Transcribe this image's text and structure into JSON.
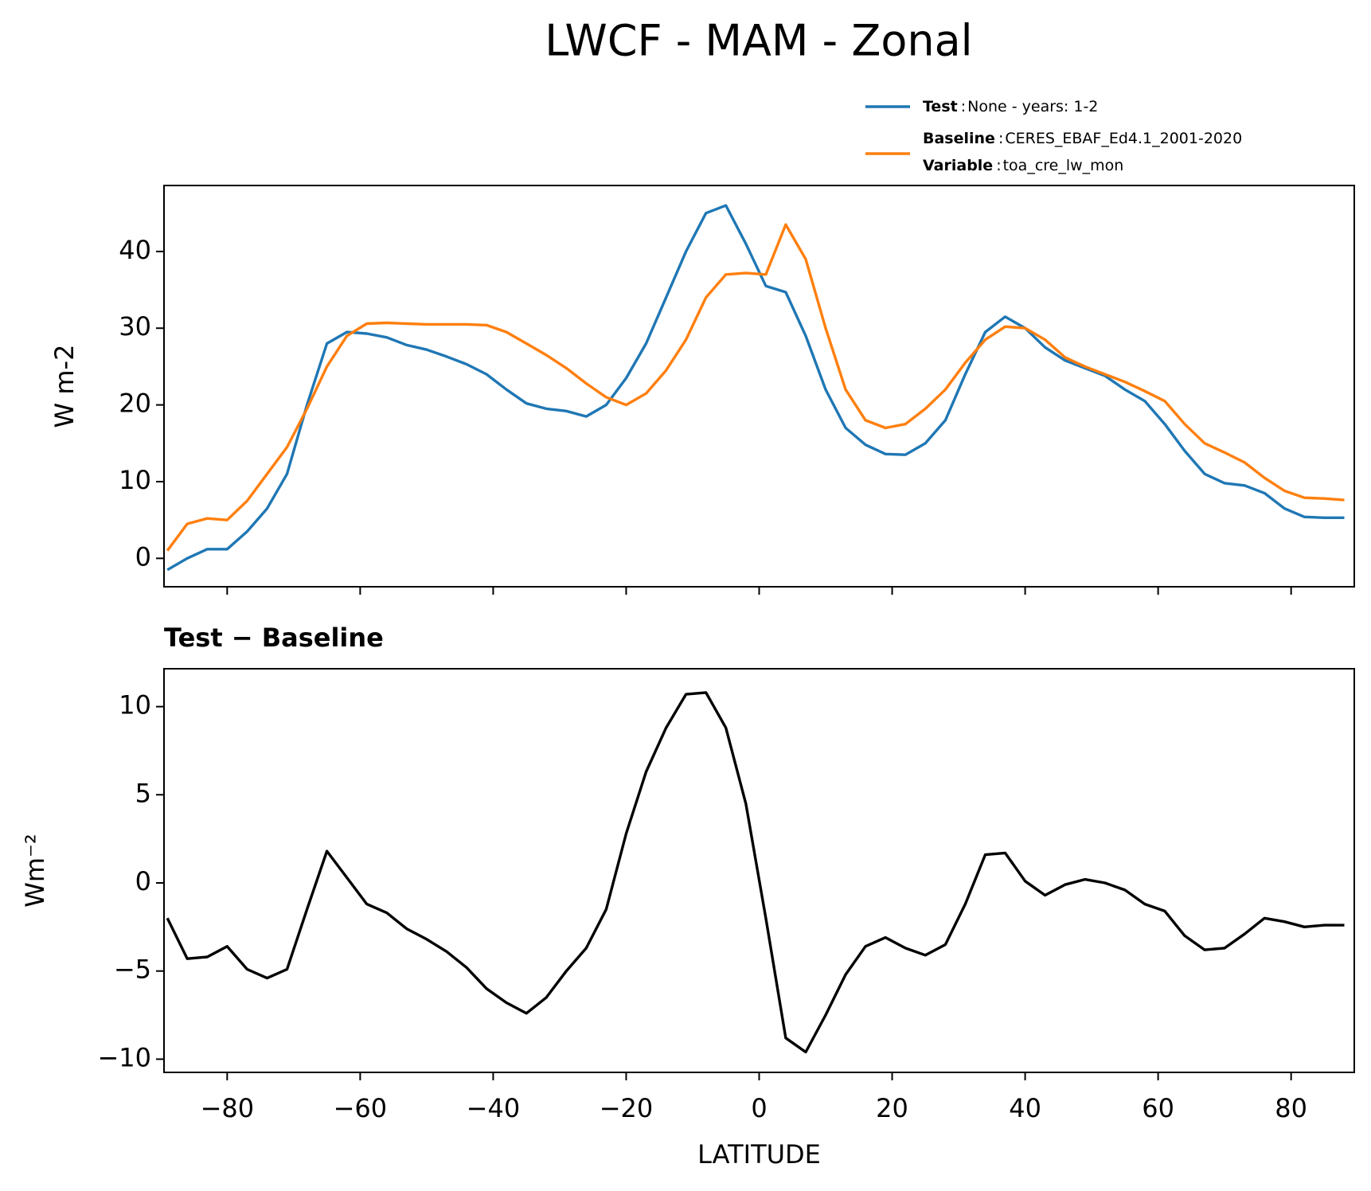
{
  "chart_data": [
    {
      "type": "line",
      "title": "LWCF - MAM - Zonal",
      "ylabel": "W m-2",
      "x": [
        -89,
        -86,
        -83,
        -80,
        -77,
        -74,
        -71,
        -68,
        -65,
        -62,
        -59,
        -56,
        -53,
        -50,
        -47,
        -44,
        -41,
        -38,
        -35,
        -32,
        -29,
        -26,
        -23,
        -20,
        -17,
        -14,
        -11,
        -8,
        -5,
        -2,
        1,
        4,
        7,
        10,
        13,
        16,
        19,
        22,
        25,
        28,
        31,
        34,
        37,
        40,
        43,
        46,
        49,
        52,
        55,
        58,
        61,
        64,
        67,
        70,
        73,
        76,
        79,
        82,
        85,
        88
      ],
      "series": [
        {
          "name": "Test",
          "description": "None - years: 1-2",
          "color": "#1f77b4",
          "values": [
            -1.5,
            0,
            1.2,
            1.2,
            3.5,
            6.5,
            11,
            20,
            28,
            29.5,
            29.3,
            28.8,
            27.8,
            27.2,
            26.3,
            25.3,
            24,
            22,
            20.2,
            19.5,
            19.2,
            18.5,
            20,
            23.5,
            28,
            34,
            40,
            45,
            46,
            41,
            35.5,
            34.7,
            29,
            22,
            17,
            14.8,
            13.6,
            13.5,
            15,
            18,
            24,
            29.5,
            31.5,
            30,
            27.5,
            25.8,
            24.8,
            23.8,
            22,
            20.5,
            17.5,
            14,
            11,
            9.8,
            9.5,
            8.5,
            6.5,
            5.4,
            5.3,
            5.3
          ]
        },
        {
          "name": "Baseline",
          "description": "CERES_EBAF_Ed4.1_2001-2020",
          "color": "#ff7f0e",
          "values": [
            1,
            4.5,
            5.2,
            5,
            7.5,
            11,
            14.5,
            19.5,
            25,
            29,
            30.6,
            30.7,
            30.6,
            30.5,
            30.5,
            30.5,
            30.4,
            29.5,
            28,
            26.5,
            24.8,
            22.8,
            21,
            20,
            21.5,
            24.5,
            28.5,
            34,
            37,
            37.2,
            37,
            43.5,
            39,
            30,
            22,
            18,
            17,
            17.5,
            19.5,
            22,
            25.5,
            28.5,
            30.2,
            30,
            28.5,
            26.2,
            25,
            24,
            23,
            21.8,
            20.5,
            17.5,
            15,
            13.8,
            12.5,
            10.5,
            8.8,
            7.9,
            7.8,
            7.6
          ]
        }
      ],
      "legend_separator": ":",
      "variable": {
        "label": "Variable",
        "value": "toa_cre_lw_mon"
      },
      "xlim": [
        -89.5,
        89.5
      ],
      "xticks": [
        -80,
        -60,
        -40,
        -20,
        0,
        20,
        40,
        60,
        80
      ],
      "ylim": [
        -3.7,
        48.6
      ],
      "yticks": [
        0,
        10,
        20,
        30,
        40
      ]
    },
    {
      "type": "line",
      "title": "Test − Baseline",
      "xlabel": "LATITUDE",
      "ylabel": "Wm⁻²",
      "color": "#000000",
      "x": [
        -89,
        -86,
        -83,
        -80,
        -77,
        -74,
        -71,
        -68,
        -65,
        -62,
        -59,
        -56,
        -53,
        -50,
        -47,
        -44,
        -41,
        -38,
        -35,
        -32,
        -29,
        -26,
        -23,
        -20,
        -17,
        -14,
        -11,
        -8,
        -5,
        -2,
        1,
        4,
        7,
        10,
        13,
        16,
        19,
        22,
        25,
        28,
        31,
        34,
        37,
        40,
        43,
        46,
        49,
        52,
        55,
        58,
        61,
        64,
        67,
        70,
        73,
        76,
        79,
        82,
        85,
        88
      ],
      "values": [
        -2,
        -4.3,
        -4.2,
        -3.6,
        -4.9,
        -5.4,
        -4.9,
        -1.5,
        1.8,
        0.3,
        -1.2,
        -1.7,
        -2.6,
        -3.2,
        -3.9,
        -4.8,
        -6,
        -6.8,
        -7.4,
        -6.5,
        -5,
        -3.7,
        -1.5,
        2.8,
        6.3,
        8.8,
        10.7,
        10.8,
        8.8,
        4.5,
        -2,
        -8.8,
        -9.6,
        -7.5,
        -5.2,
        -3.6,
        -3.1,
        -3.7,
        -4.1,
        -3.5,
        -1.2,
        1.6,
        1.7,
        0.1,
        -0.7,
        -0.1,
        0.2,
        0,
        -0.4,
        -1.2,
        -1.6,
        -3,
        -3.8,
        -3.7,
        -2.9,
        -2,
        -2.2,
        -2.5,
        -2.4,
        -2.4
      ],
      "xlim": [
        -89.5,
        89.5
      ],
      "xticks": [
        {
          "value": -80,
          "label": "−80"
        },
        {
          "value": -60,
          "label": "−60"
        },
        {
          "value": -40,
          "label": "−40"
        },
        {
          "value": -20,
          "label": "−20"
        },
        0,
        20,
        40,
        60,
        80
      ],
      "ylim": [
        -10.75,
        12.15
      ],
      "yticks": [
        {
          "value": -10,
          "label": "−10"
        },
        {
          "value": -5,
          "label": "−5"
        },
        0,
        5,
        10
      ]
    }
  ]
}
